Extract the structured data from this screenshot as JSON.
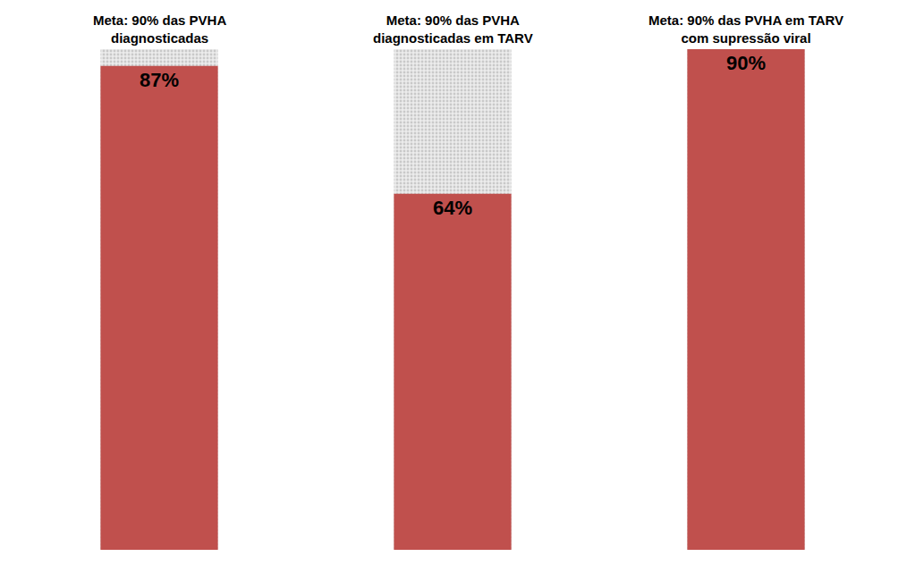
{
  "chart_data": {
    "type": "bar",
    "categories": [
      null,
      null,
      null
    ],
    "values": [
      87,
      64,
      90
    ],
    "value_labels": [
      "87%",
      "64%",
      "90%"
    ],
    "color": "#c0504d",
    "data_labels": true,
    "targets": [
      90,
      90,
      90
    ],
    "target_labels": [
      "Meta: 90% das PVHA\ndiagnosticadas",
      "Meta: 90% das PVHA\ndiagnosticadas em TARV",
      "Meta: 90% das PVHA em TARV\ncom supressão viral"
    ],
    "ylim": [
      0,
      90
    ],
    "grid": false,
    "tick_labels": false
  }
}
